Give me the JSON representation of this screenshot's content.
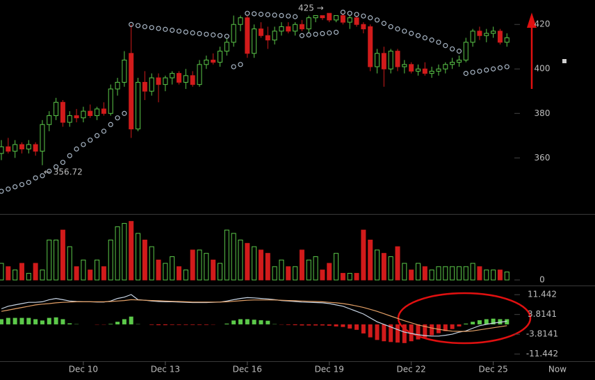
{
  "chart_data": [
    {
      "type": "candlestick",
      "x": [
        7,
        7.25,
        7.5,
        7.75,
        8,
        8.25,
        8.5,
        8.75,
        9,
        9.25,
        9.5,
        9.75,
        10,
        10.25,
        10.5,
        10.75,
        11,
        11.25,
        11.5,
        11.75,
        12,
        12.25,
        12.5,
        12.75,
        13,
        13.25,
        13.5,
        13.75,
        14,
        14.25,
        14.5,
        14.75,
        15,
        15.25,
        15.5,
        15.75,
        16,
        16.25,
        16.5,
        16.75,
        17,
        17.25,
        17.5,
        17.75,
        18,
        18.25,
        18.5,
        18.75,
        19,
        19.25,
        19.5,
        19.75,
        20,
        20.25,
        20.5,
        20.75,
        21,
        21.25,
        21.5,
        21.75,
        22,
        22.25,
        22.5,
        22.75,
        23,
        23.25,
        23.5,
        23.75,
        24,
        24.25,
        24.5,
        24.75,
        25,
        25.25,
        25.5
      ],
      "open": [
        362,
        365,
        363,
        366,
        364,
        366,
        363,
        375,
        379,
        385,
        376,
        379,
        378,
        381,
        379,
        382,
        380,
        391,
        394,
        407,
        373,
        394,
        390,
        396,
        393,
        396,
        398,
        394,
        397,
        393,
        402,
        404,
        403,
        408,
        412,
        420,
        423,
        407,
        418,
        415,
        413,
        417,
        419,
        417,
        420,
        418,
        423,
        424,
        425,
        422,
        424,
        421,
        423,
        420,
        419,
        401,
        407,
        400,
        408,
        401,
        402,
        399,
        400,
        398,
        399,
        400,
        402,
        403,
        404,
        412,
        417,
        415,
        416,
        417,
        412
      ],
      "high": [
        368,
        369,
        368,
        367,
        368,
        367,
        377,
        381,
        387,
        386,
        381,
        382,
        383,
        384,
        383,
        385,
        393,
        396,
        408,
        420,
        396,
        399,
        398,
        398,
        397,
        399,
        399,
        400,
        399,
        404,
        406,
        407,
        410,
        414,
        424,
        424,
        424,
        420,
        421,
        419,
        419,
        421,
        421,
        421,
        422,
        424,
        424,
        424,
        425,
        424,
        425,
        424,
        424,
        421,
        420,
        409,
        410,
        409,
        409,
        404,
        403,
        402,
        403,
        401,
        402,
        403,
        405,
        406,
        414,
        418,
        419,
        418,
        419,
        418,
        416
      ],
      "low": [
        359,
        362,
        360,
        362,
        362,
        361,
        356.72,
        372,
        377,
        374,
        374,
        376,
        376,
        378,
        377,
        379,
        379,
        388,
        392,
        369,
        372,
        386,
        388,
        385,
        390,
        393,
        393,
        391,
        392,
        392,
        400,
        402,
        401,
        406,
        410,
        417,
        405,
        405,
        414,
        409,
        411,
        415,
        416,
        415,
        417,
        416,
        421,
        422,
        421,
        421,
        420,
        418,
        419,
        416,
        399,
        398,
        392,
        398,
        399,
        398,
        398,
        397,
        397,
        396,
        397,
        398,
        400,
        401,
        403,
        410,
        413,
        412,
        414,
        411,
        410
      ],
      "close": [
        365,
        363,
        366,
        364,
        366,
        363,
        375,
        379,
        385,
        376,
        379,
        378,
        381,
        379,
        382,
        380,
        391,
        394,
        404,
        373,
        394,
        390,
        396,
        393,
        396,
        398,
        394,
        397,
        393,
        402,
        404,
        403,
        408,
        412,
        420,
        423,
        407,
        418,
        415,
        413,
        417,
        419,
        417,
        420,
        418,
        423,
        424,
        423,
        422,
        424,
        421,
        423,
        420,
        418,
        401,
        407,
        400,
        408,
        401,
        402,
        399,
        400,
        398,
        399,
        400,
        402,
        403,
        404,
        412,
        417,
        415,
        416,
        417,
        412,
        414
      ],
      "sar": [
        345,
        346,
        347,
        348,
        349,
        351,
        352,
        354,
        356,
        358,
        361,
        364,
        366,
        368,
        370,
        372,
        375,
        378,
        380,
        420,
        419.5,
        419,
        418.6,
        418.2,
        417.8,
        417.4,
        417,
        416.6,
        416.2,
        415.9,
        415.6,
        415.3,
        415,
        414.7,
        401,
        402,
        425,
        424.8,
        424.6,
        424.4,
        424.2,
        424,
        423.8,
        423.5,
        415,
        415.3,
        415.6,
        415.9,
        416.2,
        416.5,
        425.5,
        425,
        424.5,
        423.8,
        423,
        422,
        420.5,
        419,
        418,
        417,
        416,
        415,
        414,
        413,
        412,
        410.5,
        409,
        408,
        398,
        398.5,
        399,
        399.5,
        400,
        400.5,
        401
      ],
      "annotations": [
        "← 356.72",
        "425 →"
      ],
      "up_color": "#5cc94a",
      "down_color": "#d11b1b",
      "sar_color": "#a9b7c6",
      "xlim": [
        6.95,
        25.9
      ],
      "ylim": [
        335.1,
        431
      ],
      "yticks": [
        360,
        380,
        400,
        420
      ]
    },
    {
      "type": "bar",
      "values": [
        25,
        20,
        15,
        25,
        10,
        25,
        15,
        60,
        60,
        75,
        50,
        20,
        30,
        15,
        30,
        20,
        60,
        80,
        85,
        88,
        70,
        60,
        50,
        30,
        25,
        35,
        20,
        15,
        45,
        45,
        40,
        30,
        25,
        75,
        70,
        60,
        55,
        50,
        45,
        40,
        20,
        30,
        20,
        20,
        45,
        30,
        35,
        15,
        25,
        40,
        10,
        10,
        10,
        75,
        60,
        45,
        40,
        35,
        50,
        25,
        15,
        25,
        20,
        15,
        20,
        20,
        20,
        20,
        20,
        25,
        20,
        15,
        15,
        15,
        12
      ],
      "ylim": [
        0,
        95
      ],
      "yticks": [
        0
      ]
    },
    {
      "type": "macd",
      "lines": [
        {
          "color": "#c9d6e6",
          "values": [
            6,
            7,
            7.5,
            8,
            8.5,
            8.5,
            8.7,
            9.5,
            10,
            9.5,
            9,
            8.8,
            8.7,
            8.7,
            8.6,
            8.6,
            9,
            10,
            10.5,
            11.5,
            9.5,
            9.3,
            9,
            8.8,
            8.7,
            8.7,
            8.6,
            8.5,
            8.4,
            8.4,
            8.4,
            8.5,
            8.6,
            9,
            9.5,
            10,
            10.3,
            10.2,
            10,
            9.8,
            9.5,
            9.2,
            9,
            8.8,
            8.6,
            8.5,
            8.4,
            8.3,
            8,
            7.5,
            7,
            6,
            5,
            4,
            2.5,
            1,
            0,
            -1,
            -2,
            -3,
            -3.5,
            -4,
            -4.3,
            -4.5,
            -4.5,
            -4.2,
            -3.8,
            -3,
            -2.5,
            -1.5,
            -0.5,
            0,
            0.5,
            0.8,
            1.2
          ]
        },
        {
          "color": "#e4a066",
          "values": [
            5,
            5.5,
            6,
            6.5,
            7,
            7.5,
            7.8,
            8,
            8.3,
            8.5,
            8.6,
            8.7,
            8.7,
            8.7,
            8.7,
            8.7,
            8.8,
            9,
            9.2,
            9.5,
            9.4,
            9.3,
            9.2,
            9.1,
            9,
            8.9,
            8.8,
            8.7,
            8.6,
            8.6,
            8.6,
            8.6,
            8.6,
            8.7,
            8.9,
            9.1,
            9.3,
            9.4,
            9.4,
            9.4,
            9.4,
            9.3,
            9.2,
            9.1,
            9,
            8.9,
            8.8,
            8.7,
            8.5,
            8.3,
            8,
            7.6,
            7.1,
            6.5,
            5.8,
            5,
            4.1,
            3.2,
            2.3,
            1.4,
            0.6,
            -0.2,
            -0.8,
            -1.4,
            -1.9,
            -2.3,
            -2.6,
            -2.7,
            -2.7,
            -2.5,
            -2.1,
            -1.7,
            -1.3,
            -0.9,
            -0.5
          ]
        }
      ],
      "histogram": [
        2,
        2.5,
        2.5,
        2.5,
        2.5,
        2,
        1.5,
        2.5,
        2.7,
        2,
        0.4,
        0.1,
        0,
        0,
        -0.1,
        -0.1,
        0.2,
        1,
        2,
        3,
        0.1,
        0,
        -0.2,
        -0.3,
        -0.3,
        -0.2,
        -0.2,
        -0.2,
        -0.2,
        -0.2,
        -0.2,
        -0.1,
        0,
        0.3,
        1.5,
        2,
        2,
        1.8,
        1.6,
        1.4,
        0.1,
        -0.1,
        -0.2,
        -0.3,
        -0.4,
        -0.4,
        -0.4,
        -0.4,
        -0.5,
        -0.8,
        -1,
        -1.6,
        -2.1,
        -3.5,
        -5,
        -6,
        -6.5,
        -6.8,
        -7,
        -7.2,
        -6.5,
        -5.8,
        -5,
        -4.2,
        -3.4,
        -2.6,
        -1.8,
        -0.8,
        0.3,
        1,
        1.6,
        2,
        2.2,
        2,
        2
      ],
      "up_color": "#5cc94a",
      "down_color": "#d11b1b",
      "ylim": [
        -14.2,
        14.7
      ],
      "yticks": [
        11.442,
        3.8141,
        -3.8141,
        -11.442
      ],
      "xticks": [
        {
          "value": 10,
          "label": "Dec 10"
        },
        {
          "value": 13,
          "label": "Dec 13"
        },
        {
          "value": 16,
          "label": "Dec 16"
        },
        {
          "value": 19,
          "label": "Dec 19"
        },
        {
          "value": 22,
          "label": "Dec 22"
        },
        {
          "value": 25,
          "label": "Dec 25"
        }
      ],
      "now_label": "Now"
    }
  ]
}
